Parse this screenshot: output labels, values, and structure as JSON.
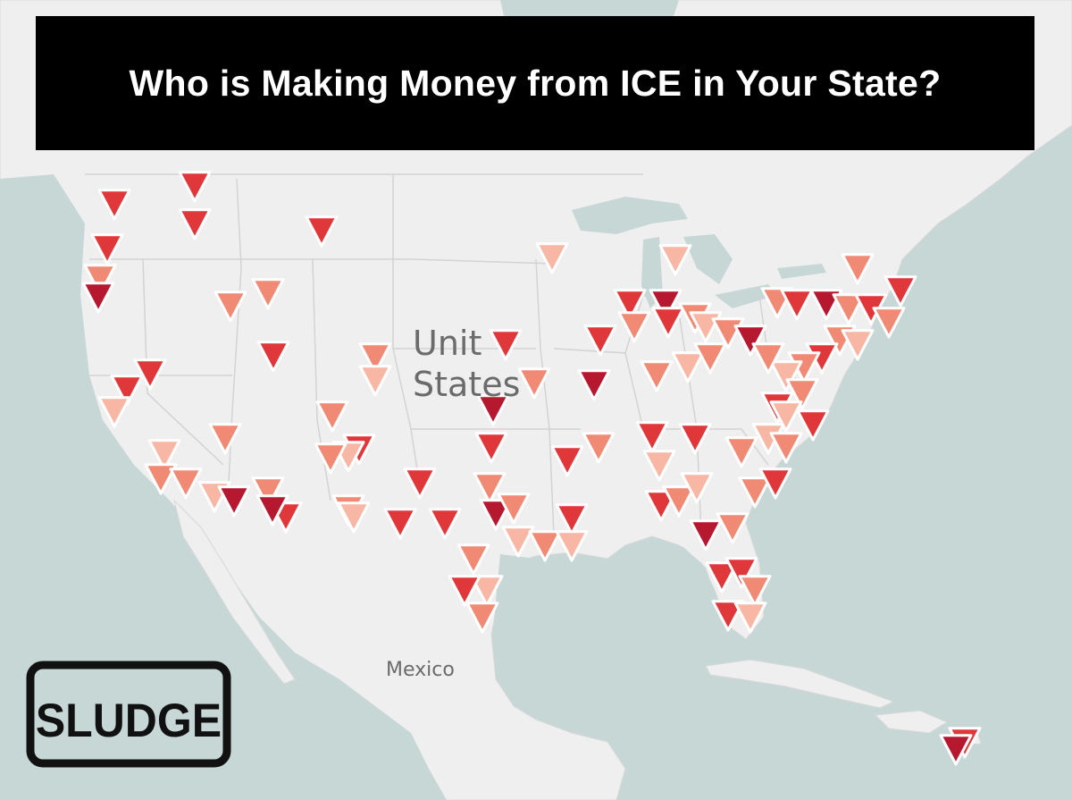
{
  "title": "Who is Making Money from ICE in Your State?",
  "map": {
    "labels": {
      "country_line1": "Unit",
      "country_line2": "States",
      "mexico": "Mexico"
    },
    "marker_icon": "down-triangle-marker",
    "colors": {
      "water": "#c7d7d6",
      "land": "#efefef",
      "marker_dark": "#b5182f",
      "marker_mid": "#e0383a",
      "marker_light": "#f08a75",
      "marker_pale": "#f8b7a4"
    }
  },
  "logo": {
    "text": "SLUDGE"
  }
}
